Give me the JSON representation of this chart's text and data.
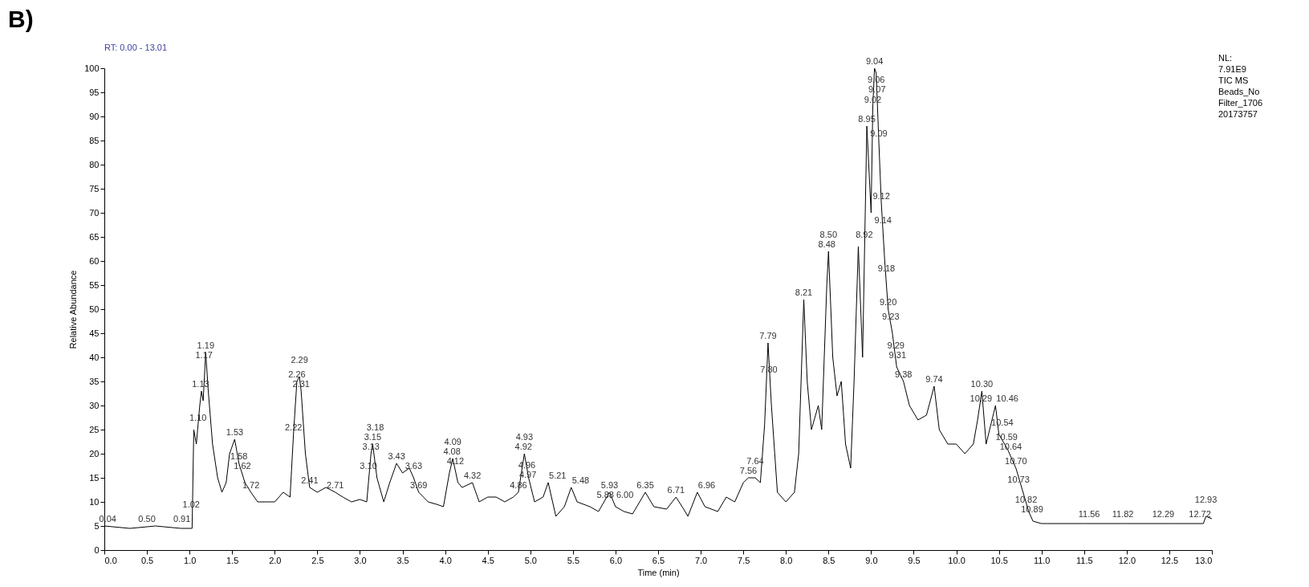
{
  "chart_data": {
    "type": "line",
    "title": "B)",
    "subtitle": "RT: 0.00 - 13.01",
    "xlabel": "Time (min)",
    "ylabel": "Relative Abundance",
    "color": "#000000",
    "x": [
      0,
      0.3,
      0.6,
      0.9,
      1.03,
      1.05,
      1.08,
      1.1,
      1.12,
      1.14,
      1.16,
      1.19,
      1.22,
      1.27,
      1.33,
      1.38,
      1.43,
      1.47,
      1.53,
      1.58,
      1.65,
      1.72,
      1.8,
      1.9,
      2.0,
      2.1,
      2.18,
      2.22,
      2.26,
      2.29,
      2.31,
      2.36,
      2.41,
      2.5,
      2.6,
      2.71,
      2.8,
      2.9,
      3.0,
      3.08,
      3.13,
      3.15,
      3.2,
      3.28,
      3.35,
      3.43,
      3.5,
      3.58,
      3.63,
      3.69,
      3.8,
      3.9,
      3.98,
      4.05,
      4.09,
      4.15,
      4.2,
      4.32,
      4.4,
      4.5,
      4.6,
      4.7,
      4.8,
      4.86,
      4.93,
      4.98,
      5.05,
      5.15,
      5.21,
      5.3,
      5.4,
      5.48,
      5.55,
      5.7,
      5.8,
      5.93,
      6.0,
      6.1,
      6.2,
      6.35,
      6.45,
      6.6,
      6.71,
      6.8,
      6.85,
      6.96,
      7.05,
      7.2,
      7.3,
      7.4,
      7.5,
      7.56,
      7.64,
      7.7,
      7.75,
      7.79,
      7.83,
      7.9,
      8.0,
      8.1,
      8.15,
      8.21,
      8.25,
      8.3,
      8.38,
      8.42,
      8.48,
      8.5,
      8.55,
      8.6,
      8.65,
      8.7,
      8.76,
      8.8,
      8.85,
      8.9,
      8.95,
      9.0,
      9.02,
      9.04,
      9.06,
      9.09,
      9.12,
      9.16,
      9.2,
      9.25,
      9.3,
      9.38,
      9.45,
      9.55,
      9.65,
      9.74,
      9.8,
      9.9,
      10.0,
      10.1,
      10.2,
      10.25,
      10.3,
      10.35,
      10.46,
      10.5,
      10.6,
      10.7,
      10.8,
      10.85,
      10.9,
      11.0,
      11.5,
      12.0,
      12.5,
      12.9,
      12.93,
      13.0
    ],
    "values": [
      5,
      4.5,
      5,
      4.5,
      4.5,
      25,
      22,
      26,
      30,
      33,
      31,
      41,
      33,
      22,
      15,
      12,
      14,
      20,
      23,
      18,
      14,
      12,
      10,
      10,
      10,
      12,
      11,
      24,
      35,
      36,
      33,
      20,
      13,
      12,
      13,
      12,
      11,
      10,
      10.5,
      10,
      20,
      22,
      15,
      10,
      14,
      18,
      16,
      17,
      15,
      12,
      10,
      9.5,
      9,
      16,
      19,
      14,
      13,
      14,
      10,
      11,
      11,
      10,
      11,
      12,
      20,
      15,
      10,
      11,
      14,
      7,
      9,
      13,
      10,
      9,
      8,
      12,
      9,
      8,
      7.5,
      12,
      9,
      8.5,
      11,
      8.5,
      7,
      12,
      9,
      8,
      11,
      10,
      14,
      15,
      15,
      14,
      26,
      43,
      30,
      12,
      10,
      12,
      20,
      52,
      35,
      25,
      30,
      25,
      55,
      62,
      40,
      32,
      35,
      22,
      17,
      35,
      63,
      40,
      88,
      70,
      92,
      100,
      99,
      85,
      72,
      60,
      50,
      45,
      38,
      35,
      30,
      27,
      28,
      34,
      25,
      22,
      22,
      20,
      22,
      27,
      33,
      22,
      30,
      24,
      21,
      17,
      11,
      8,
      6,
      5.5,
      5.5,
      5.5,
      5.5,
      5.5,
      7,
      6.5
    ],
    "xlim": [
      0,
      13
    ],
    "xticks": [
      {
        "value": 0,
        "label": "0.0"
      },
      0.5,
      {
        "value": 1,
        "label": "1.0"
      },
      1.5,
      {
        "value": 2,
        "label": "2.0"
      },
      2.5,
      {
        "value": 3,
        "label": "3.0"
      },
      3.5,
      {
        "value": 4,
        "label": "4.0"
      },
      4.5,
      {
        "value": 5,
        "label": "5.0"
      },
      5.5,
      {
        "value": 6,
        "label": "6.0"
      },
      6.5,
      {
        "value": 7,
        "label": "7.0"
      },
      7.5,
      {
        "value": 8,
        "label": "8.0"
      },
      8.5,
      {
        "value": 9,
        "label": "9.0"
      },
      9.5,
      {
        "value": 10,
        "label": "10.0"
      },
      10.5,
      {
        "value": 11,
        "label": "11.0"
      },
      11.5,
      {
        "value": 12,
        "label": "12.0"
      },
      12.5,
      {
        "value": 13,
        "label": "13.0"
      }
    ],
    "ylim": [
      0,
      100
    ],
    "yticks": [
      0,
      5,
      10,
      15,
      20,
      25,
      30,
      35,
      40,
      45,
      50,
      55,
      60,
      65,
      70,
      75,
      80,
      85,
      90,
      95,
      100
    ],
    "annotations": [
      "NL:",
      "7.91E9",
      "TIC MS",
      "Beads_No",
      "Filter_1706",
      "20173757",
      {
        "text": "0.04",
        "x": 0.04,
        "y": 5
      },
      {
        "text": "0.50",
        "x": 0.5,
        "y": 5
      },
      {
        "text": "0.91",
        "x": 0.91,
        "y": 5
      },
      {
        "text": "1.02",
        "x": 1.02,
        "y": 8
      },
      {
        "text": "1.10",
        "x": 1.1,
        "y": 26
      },
      {
        "text": "1.13",
        "x": 1.13,
        "y": 33
      },
      {
        "text": "1.17",
        "x": 1.17,
        "y": 39
      },
      {
        "text": "1.19",
        "x": 1.19,
        "y": 41
      },
      {
        "text": "1.53",
        "x": 1.53,
        "y": 23
      },
      {
        "text": "1.58",
        "x": 1.58,
        "y": 18
      },
      {
        "text": "1.62",
        "x": 1.62,
        "y": 16
      },
      {
        "text": "1.72",
        "x": 1.72,
        "y": 12
      },
      {
        "text": "2.22",
        "x": 2.22,
        "y": 24
      },
      {
        "text": "2.26",
        "x": 2.26,
        "y": 35
      },
      {
        "text": "2.29",
        "x": 2.29,
        "y": 36
      },
      {
        "text": "2.31",
        "x": 2.31,
        "y": 33
      },
      {
        "text": "2.41",
        "x": 2.41,
        "y": 13
      },
      {
        "text": "2.71",
        "x": 2.71,
        "y": 12
      },
      {
        "text": "3.10",
        "x": 3.1,
        "y": 16
      },
      {
        "text": "3.13",
        "x": 3.13,
        "y": 20
      },
      {
        "text": "3.15",
        "x": 3.15,
        "y": 22
      },
      {
        "text": "3.18",
        "x": 3.18,
        "y": 22
      },
      {
        "text": "3.43",
        "x": 3.43,
        "y": 18
      },
      {
        "text": "3.63",
        "x": 3.63,
        "y": 16
      },
      {
        "text": "3.69",
        "x": 3.69,
        "y": 12
      },
      {
        "text": "4.08",
        "x": 4.08,
        "y": 19
      },
      {
        "text": "4.09",
        "x": 4.09,
        "y": 19
      },
      {
        "text": "4.12",
        "x": 4.12,
        "y": 17
      },
      {
        "text": "4.32",
        "x": 4.32,
        "y": 14
      },
      {
        "text": "4.86",
        "x": 4.86,
        "y": 12
      },
      {
        "text": "4.92",
        "x": 4.92,
        "y": 20
      },
      {
        "text": "4.93",
        "x": 4.93,
        "y": 20
      },
      {
        "text": "4.96",
        "x": 4.96,
        "y": 19
      },
      {
        "text": "4.97",
        "x": 4.97,
        "y": 17
      },
      {
        "text": "5.21",
        "x": 5.21,
        "y": 14
      },
      {
        "text": "5.48",
        "x": 5.48,
        "y": 13
      },
      {
        "text": "5.88",
        "x": 5.88,
        "y": 10
      },
      {
        "text": "5.93",
        "x": 5.93,
        "y": 12
      },
      {
        "text": "6.00",
        "x": 6.0,
        "y": 10
      },
      {
        "text": "6.35",
        "x": 6.35,
        "y": 12
      },
      {
        "text": "6.71",
        "x": 6.71,
        "y": 11
      },
      {
        "text": "6.96",
        "x": 6.96,
        "y": 12
      },
      {
        "text": "7.56",
        "x": 7.56,
        "y": 15
      },
      {
        "text": "7.64",
        "x": 7.64,
        "y": 15
      },
      {
        "text": "7.79",
        "x": 7.79,
        "y": 43
      },
      {
        "text": "7.80",
        "x": 7.8,
        "y": 36
      },
      {
        "text": "8.21",
        "x": 8.21,
        "y": 52
      },
      {
        "text": "8.48",
        "x": 8.48,
        "y": 62
      },
      {
        "text": "8.50",
        "x": 8.5,
        "y": 62
      },
      {
        "text": "8.92",
        "x": 8.92,
        "y": 64
      },
      {
        "text": "8.95",
        "x": 8.95,
        "y": 88
      },
      {
        "text": "9.02",
        "x": 9.02,
        "y": 92
      },
      {
        "text": "9.04",
        "x": 9.04,
        "y": 100
      },
      {
        "text": "9.06",
        "x": 9.06,
        "y": 99
      },
      {
        "text": "9.07",
        "x": 9.07,
        "y": 97
      },
      {
        "text": "9.09",
        "x": 9.09,
        "y": 85
      },
      {
        "text": "9.12",
        "x": 9.12,
        "y": 72
      },
      {
        "text": "9.14",
        "x": 9.14,
        "y": 67
      },
      {
        "text": "9.18",
        "x": 9.18,
        "y": 57
      },
      {
        "text": "9.20",
        "x": 9.2,
        "y": 50
      },
      {
        "text": "9.23",
        "x": 9.23,
        "y": 47
      },
      {
        "text": "9.29",
        "x": 9.29,
        "y": 41
      },
      {
        "text": "9.31",
        "x": 9.31,
        "y": 39
      },
      {
        "text": "9.38",
        "x": 9.38,
        "y": 35
      },
      {
        "text": "9.74",
        "x": 9.74,
        "y": 34
      },
      {
        "text": "10.29",
        "x": 10.29,
        "y": 30
      },
      {
        "text": "10.30",
        "x": 10.3,
        "y": 33
      },
      {
        "text": "10.46",
        "x": 10.46,
        "y": 30
      },
      {
        "text": "10.54",
        "x": 10.54,
        "y": 25
      },
      {
        "text": "10.59",
        "x": 10.59,
        "y": 22
      },
      {
        "text": "10.64",
        "x": 10.64,
        "y": 20
      },
      {
        "text": "10.70",
        "x": 10.7,
        "y": 17
      },
      {
        "text": "10.73",
        "x": 10.73,
        "y": 16
      },
      {
        "text": "10.82",
        "x": 10.82,
        "y": 9
      },
      {
        "text": "10.89",
        "x": 10.89,
        "y": 7
      },
      {
        "text": "11.56",
        "x": 11.56,
        "y": 6
      },
      {
        "text": "11.82",
        "x": 11.82,
        "y": 6
      },
      {
        "text": "12.29",
        "x": 12.29,
        "y": 6
      },
      {
        "text": "12.72",
        "x": 12.72,
        "y": 6
      },
      {
        "text": "12.93",
        "x": 12.93,
        "y": 7
      }
    ]
  }
}
